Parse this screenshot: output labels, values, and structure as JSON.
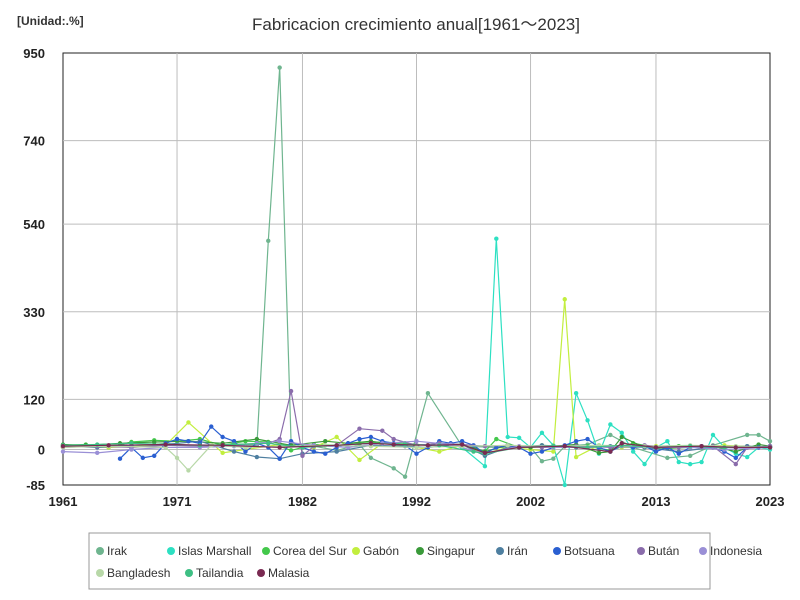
{
  "chart_data": {
    "type": "line",
    "title": "Fabricacion crecimiento anual[1961～2023]",
    "unit_label": "[Unidad:.%]",
    "xlabel": "",
    "ylabel": "",
    "xlim": [
      1961,
      2023
    ],
    "ylim": [
      -85,
      950
    ],
    "x_ticks": [
      1961,
      1971,
      1982,
      1992,
      2002,
      2013,
      2023
    ],
    "y_ticks": [
      950,
      740,
      540,
      330,
      120,
      0,
      -85
    ],
    "grid": true,
    "legend_position": "bottom",
    "series": [
      {
        "name": "Irak",
        "color": "#6fb58f",
        "x": [
          1961,
          1964,
          1967,
          1970,
          1973,
          1976,
          1978,
          1979,
          1980,
          1981,
          1983,
          1985,
          1987,
          1988,
          1990,
          1991,
          1993,
          1996,
          1999,
          2002,
          2003,
          2004,
          2005,
          2007,
          2009,
          2011,
          2014,
          2016,
          2018,
          2021,
          2022,
          2023
        ],
        "y": [
          5,
          10,
          6,
          15,
          8,
          12,
          10,
          500,
          915,
          15,
          8,
          -2,
          12,
          -20,
          -45,
          -65,
          135,
          8,
          5,
          5,
          -28,
          -22,
          8,
          12,
          35,
          5,
          -20,
          -15,
          10,
          35,
          35,
          20
        ]
      },
      {
        "name": "Islas Marshall",
        "color": "#2de0c2",
        "x": [
          1996,
          1998,
          1999,
          2000,
          2001,
          2002,
          2003,
          2004,
          2005,
          2006,
          2007,
          2008,
          2009,
          2010,
          2011,
          2012,
          2013,
          2014,
          2015,
          2016,
          2017,
          2018,
          2019,
          2020,
          2021,
          2022,
          2023
        ],
        "y": [
          5,
          -40,
          505,
          30,
          28,
          5,
          40,
          10,
          -85,
          135,
          70,
          -10,
          60,
          40,
          -5,
          -35,
          5,
          20,
          -30,
          -35,
          -30,
          35,
          5,
          -10,
          -18,
          5,
          0
        ]
      },
      {
        "name": "Corea del Sur",
        "color": "#43c84b",
        "x": [
          1961,
          1963,
          1965,
          1967,
          1969,
          1971,
          1973,
          1975,
          1977,
          1979,
          1981,
          1983,
          1985,
          1987,
          1989,
          1991,
          1993,
          1995,
          1997,
          1998,
          1999,
          2001,
          2003,
          2005,
          2007,
          2009,
          2011,
          2013,
          2015,
          2017,
          2019,
          2021,
          2023
        ],
        "y": [
          10,
          12,
          5,
          18,
          22,
          20,
          25,
          10,
          20,
          18,
          -2,
          12,
          10,
          15,
          18,
          15,
          10,
          12,
          5,
          -5,
          25,
          5,
          10,
          8,
          8,
          -2,
          15,
          5,
          8,
          5,
          5,
          8,
          5
        ]
      },
      {
        "name": "Gabón",
        "color": "#c2ee3e",
        "x": [
          1961,
          1965,
          1970,
          1972,
          1975,
          1980,
          1983,
          1985,
          1987,
          1989,
          1992,
          1994,
          1996,
          1998,
          2000,
          2002,
          2004,
          2005,
          2006,
          2008,
          2010,
          2013,
          2016,
          2019,
          2023
        ],
        "y": [
          8,
          5,
          10,
          65,
          -8,
          12,
          5,
          30,
          -25,
          15,
          5,
          -5,
          10,
          -10,
          5,
          0,
          -5,
          360,
          -18,
          10,
          5,
          8,
          5,
          10,
          5
        ]
      },
      {
        "name": "Singapur",
        "color": "#3a9a3a",
        "x": [
          1961,
          1963,
          1966,
          1969,
          1972,
          1975,
          1978,
          1981,
          1984,
          1986,
          1988,
          1990,
          1992,
          1994,
          1996,
          1998,
          2000,
          2002,
          2004,
          2006,
          2008,
          2009,
          2010,
          2012,
          2014,
          2016,
          2018,
          2020,
          2022,
          2023
        ],
        "y": [
          12,
          10,
          15,
          18,
          20,
          15,
          25,
          10,
          20,
          15,
          20,
          12,
          10,
          15,
          12,
          -5,
          10,
          5,
          8,
          12,
          -8,
          -5,
          30,
          5,
          3,
          5,
          8,
          -5,
          12,
          8
        ]
      },
      {
        "name": "Irán",
        "color": "#4e7fa0",
        "x": [
          1961,
          1964,
          1967,
          1970,
          1973,
          1976,
          1978,
          1980,
          1982,
          1985,
          1988,
          1991,
          1993,
          1996,
          1998,
          2000,
          2003,
          2006,
          2009,
          2012,
          2015,
          2018,
          2021,
          2023
        ],
        "y": [
          8,
          5,
          10,
          12,
          20,
          -5,
          -18,
          -22,
          -10,
          -5,
          10,
          8,
          5,
          12,
          -15,
          5,
          10,
          5,
          8,
          5,
          -5,
          5,
          8,
          5
        ]
      },
      {
        "name": "Botsuana",
        "color": "#2a5fd1",
        "x": [
          1966,
          1967,
          1968,
          1969,
          1970,
          1971,
          1972,
          1973,
          1974,
          1975,
          1976,
          1977,
          1978,
          1979,
          1980,
          1981,
          1982,
          1983,
          1984,
          1985,
          1986,
          1987,
          1988,
          1989,
          1990,
          1991,
          1992,
          1993,
          1994,
          1995,
          1996,
          1997,
          1998,
          1999,
          2000,
          2001,
          2002,
          2003,
          2004,
          2005,
          2006,
          2007,
          2008,
          2009,
          2010,
          2011,
          2012,
          2013,
          2014,
          2015,
          2016,
          2017,
          2018,
          2019,
          2020,
          2021,
          2022,
          2023
        ],
        "y": [
          -22,
          5,
          -20,
          -15,
          15,
          25,
          20,
          15,
          55,
          30,
          20,
          -5,
          15,
          5,
          -22,
          20,
          5,
          -5,
          -10,
          5,
          15,
          25,
          30,
          20,
          15,
          10,
          -10,
          5,
          20,
          15,
          20,
          10,
          -10,
          5,
          10,
          5,
          -10,
          -5,
          5,
          10,
          20,
          25,
          5,
          -5,
          10,
          5,
          8,
          -5,
          5,
          -10,
          5,
          8,
          5,
          -5,
          -20,
          5,
          5,
          8
        ]
      },
      {
        "name": "Bután",
        "color": "#8a6cab",
        "x": [
          1961,
          1964,
          1967,
          1970,
          1973,
          1976,
          1979,
          1980,
          1981,
          1982,
          1983,
          1985,
          1987,
          1989,
          1990,
          1992,
          1994,
          1996,
          1998,
          2000,
          2003,
          2006,
          2009,
          2012,
          2015,
          2018,
          2020,
          2021,
          2023
        ],
        "y": [
          5,
          8,
          5,
          10,
          8,
          12,
          15,
          25,
          140,
          -15,
          8,
          10,
          50,
          45,
          25,
          10,
          15,
          12,
          8,
          10,
          5,
          8,
          5,
          10,
          5,
          8,
          -35,
          5,
          8
        ]
      },
      {
        "name": "Indonesia",
        "color": "#9a8fd6",
        "x": [
          1961,
          1964,
          1967,
          1970,
          1973,
          1976,
          1978,
          1980,
          1983,
          1986,
          1989,
          1992,
          1995,
          1998,
          2001,
          2004,
          2007,
          2010,
          2013,
          2016,
          2019,
          2023
        ],
        "y": [
          -5,
          -8,
          0,
          5,
          5,
          8,
          15,
          20,
          10,
          5,
          15,
          20,
          12,
          -10,
          8,
          5,
          5,
          8,
          5,
          5,
          0,
          5
        ]
      },
      {
        "name": "Bangladesh",
        "color": "#b8d8a8",
        "x": [
          1961,
          1965,
          1970,
          1971,
          1972,
          1974,
          1977,
          1980,
          1984,
          1988,
          1992,
          1996,
          2000,
          2004,
          2008,
          2012,
          2016,
          2020,
          2023
        ],
        "y": [
          5,
          8,
          5,
          -20,
          -50,
          10,
          5,
          8,
          10,
          8,
          5,
          8,
          10,
          8,
          10,
          8,
          10,
          8,
          5
        ]
      },
      {
        "name": "Tailandia",
        "color": "#3ebf84",
        "x": [
          1961,
          1964,
          1967,
          1970,
          1973,
          1976,
          1979,
          1982,
          1985,
          1988,
          1991,
          1994,
          1997,
          1998,
          2001,
          2004,
          2007,
          2010,
          2013,
          2016,
          2019,
          2023
        ],
        "y": [
          10,
          12,
          15,
          12,
          10,
          12,
          15,
          5,
          10,
          15,
          12,
          10,
          -5,
          -10,
          5,
          8,
          5,
          10,
          5,
          8,
          5,
          5
        ]
      },
      {
        "name": "Malasia",
        "color": "#7a2a52",
        "x": [
          1961,
          1965,
          1970,
          1975,
          1980,
          1985,
          1988,
          1990,
          1993,
          1996,
          1998,
          2001,
          2005,
          2009,
          2010,
          2013,
          2017,
          2020,
          2023
        ],
        "y": [
          8,
          10,
          12,
          10,
          5,
          10,
          15,
          12,
          10,
          12,
          -8,
          5,
          8,
          -5,
          15,
          5,
          8,
          5,
          5
        ]
      }
    ]
  }
}
